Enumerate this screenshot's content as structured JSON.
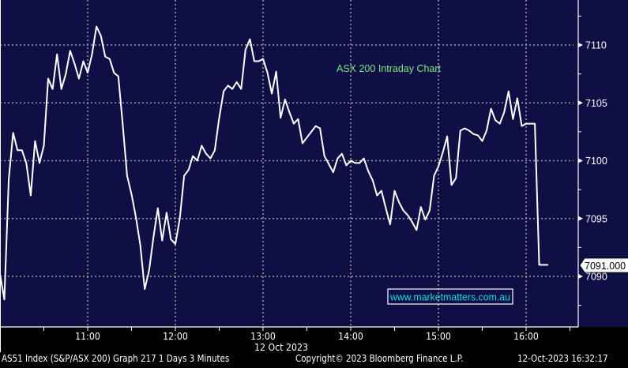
{
  "chart_data": {
    "type": "line",
    "title": "ASX 200 Intraday Chart",
    "watermark": "www.marketmatters.com.au",
    "start_time": "10:00",
    "interval_minutes": 3,
    "series": [
      {
        "values": [
          7090.2,
          7088.0,
          7098.4,
          7102.4,
          7100.9,
          7100.9,
          7099.8,
          7097.0,
          7101.7,
          7099.8,
          7101.3,
          7107.1,
          7106.2,
          7109.2,
          7106.2,
          7107.5,
          7109.5,
          7108.4,
          7107.1,
          7108.6,
          7107.6,
          7109.2,
          7111.6,
          7110.8,
          7109.0,
          7108.8,
          7107.6,
          7107.3,
          7103.1,
          7098.7,
          7097.1,
          7095.1,
          7092.7,
          7088.9,
          7090.5,
          7093.4,
          7095.9,
          7093.1,
          7095.5,
          7093.2,
          7092.8,
          7095.0,
          7098.7,
          7099.2,
          7100.4,
          7100.0,
          7101.3,
          7100.6,
          7100.2,
          7100.9,
          7103.7,
          7106.0,
          7106.5,
          7106.2,
          7106.8,
          7106.2,
          7109.6,
          7110.5,
          7108.6,
          7108.6,
          7108.8,
          7107.6,
          7105.8,
          7107.7,
          7103.7,
          7105.3,
          7104.2,
          7103.2,
          7103.6,
          7101.5,
          7102.0,
          7102.5,
          7103.0,
          7102.8,
          7100.4,
          7099.7,
          7099.0,
          7100.2,
          7100.6,
          7099.6,
          7100.0,
          7099.8,
          7099.8,
          7100.2,
          7099.1,
          7098.3,
          7097.0,
          7097.4,
          7095.9,
          7094.5,
          7097.4,
          7096.4,
          7095.7,
          7095.3,
          7094.7,
          7094.0,
          7096.0,
          7094.9,
          7095.7,
          7098.7,
          7099.5,
          7100.7,
          7102.1,
          7097.9,
          7098.5,
          7102.6,
          7102.8,
          7102.6,
          7102.3,
          7102.2,
          7101.7,
          7102.6,
          7104.5,
          7103.5,
          7103.2,
          7104.2,
          7106.0,
          7103.6,
          7105.4,
          7103.0,
          7103.2,
          7103.2,
          7103.2,
          7091.0,
          7091.0,
          7091.0
        ]
      }
    ],
    "last_value_label": "7091.000",
    "y_ticks": [
      "7090",
      "7095",
      "7100",
      "7105",
      "7110"
    ],
    "y_tick_values": [
      7090,
      7095,
      7100,
      7105,
      7110
    ],
    "x_ticks": [
      "11:00",
      "12:00",
      "13:00",
      "14:00",
      "15:00",
      "16:00"
    ],
    "x_date_label": "12 Oct 2023",
    "ylim": [
      7085.7,
      7113.9
    ],
    "xlim": [
      "10:00",
      "16:36"
    ],
    "grid": true,
    "y_axis_side": "right",
    "colors": {
      "background": "#0f0e45",
      "line": "#ffffff",
      "title": "#7ee87e",
      "watermark": "#19e0e0",
      "grid": "#a0a0a0"
    }
  },
  "footer": {
    "security": "AS51 Index (S&P/ASX 200) Graph 217 1 Days 3 Minutes",
    "copyright": "Copyright© 2023 Bloomberg Finance L.P.",
    "timestamp": "12-Oct-2023 16:32:17"
  }
}
